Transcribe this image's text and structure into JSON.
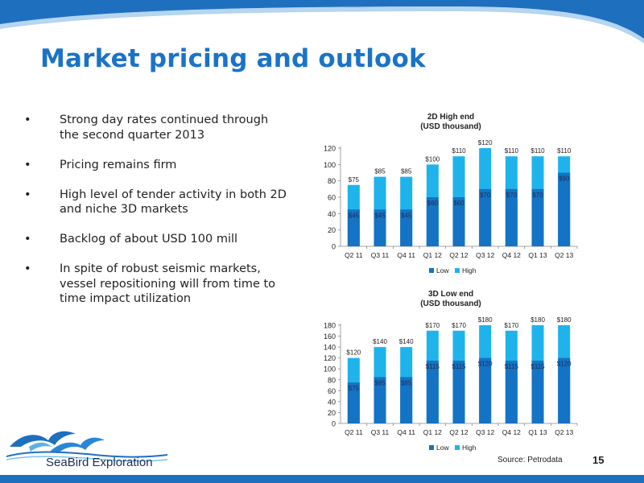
{
  "slide": {
    "title": "Market pricing and outlook",
    "page_number": "15",
    "source": "Source: Petrodata",
    "logo_text": "SeaBird Exploration"
  },
  "bullets": [
    "Strong day rates continued through the second quarter 2013",
    "Pricing remains firm",
    "High level of tender activity in both 2D and niche 3D markets",
    "Backlog of about USD 100 mill",
    "In spite of robust seismic markets, vessel repositioning will from time to time impact utilization"
  ],
  "colors": {
    "accent": "#1a73c8",
    "low": "#1473c4",
    "high": "#1fb3ec",
    "band": "#1f6fbf"
  },
  "chart_data": [
    {
      "type": "bar",
      "stacked": "overlay",
      "title": "2D High end",
      "subtitle": "(USD thousand)",
      "categories": [
        "Q2 11",
        "Q3 11",
        "Q4 11",
        "Q1 12",
        "Q2 12",
        "Q3 12",
        "Q4 12",
        "Q1 13",
        "Q2 13"
      ],
      "series": [
        {
          "name": "Low",
          "values": [
            45,
            45,
            45,
            60,
            60,
            70,
            70,
            70,
            90
          ],
          "labels": [
            "$45",
            "$45",
            "$45",
            "$60",
            "$60",
            "$70",
            "$70",
            "$70",
            "$90"
          ]
        },
        {
          "name": "High",
          "values": [
            75,
            85,
            85,
            100,
            110,
            120,
            110,
            110,
            110
          ],
          "labels": [
            "$75",
            "$85",
            "$85",
            "$100",
            "$110",
            "$120",
            "$110",
            "$110",
            "$110"
          ]
        }
      ],
      "ylim": [
        0,
        120
      ],
      "yticks": [
        "0",
        "20",
        "40",
        "60",
        "80",
        "100",
        "120"
      ],
      "legend_position": "bottom"
    },
    {
      "type": "bar",
      "stacked": "overlay",
      "title": "3D Low end",
      "subtitle": "(USD thousand)",
      "categories": [
        "Q2 11",
        "Q3 11",
        "Q4 11",
        "Q1 12",
        "Q2 12",
        "Q3 12",
        "Q4 12",
        "Q1 13",
        "Q2 13"
      ],
      "series": [
        {
          "name": "Low",
          "values": [
            75,
            85,
            85,
            115,
            115,
            120,
            115,
            115,
            120
          ],
          "labels": [
            "$75",
            "$85",
            "$85",
            "$115",
            "$115",
            "$120",
            "$115",
            "$115",
            "$120"
          ]
        },
        {
          "name": "High",
          "values": [
            120,
            140,
            140,
            170,
            170,
            180,
            170,
            180,
            180
          ],
          "labels": [
            "$120",
            "$140",
            "$140",
            "$170",
            "$170",
            "$180",
            "$170",
            "$180",
            "$180"
          ]
        }
      ],
      "ylim": [
        0,
        180
      ],
      "yticks": [
        "0",
        "20",
        "40",
        "60",
        "80",
        "100",
        "120",
        "140",
        "160",
        "180"
      ],
      "legend_position": "bottom"
    }
  ]
}
